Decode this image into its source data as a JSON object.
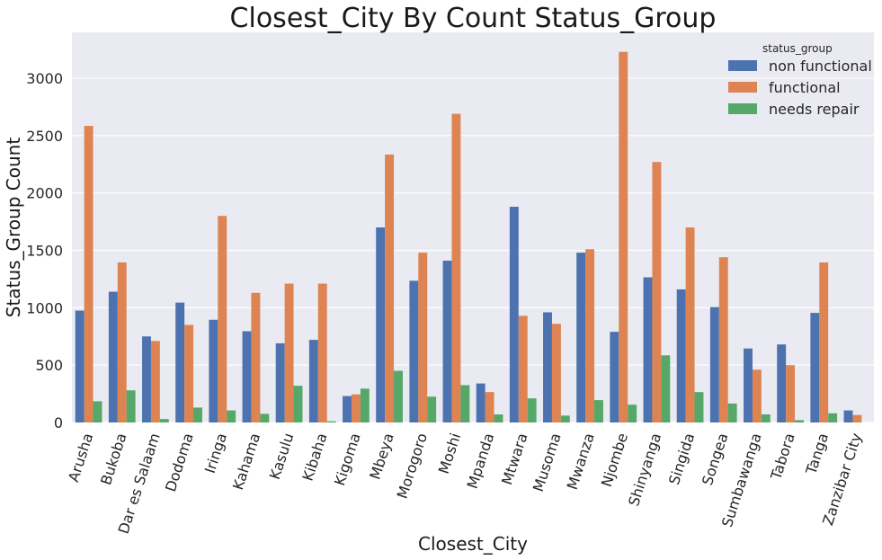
{
  "chart_data": {
    "type": "bar",
    "title": "Closest_City By Count Status_Group",
    "xlabel": "Closest_City",
    "ylabel": "Status_Group Count",
    "ylim": [
      0,
      3400
    ],
    "yticks": [
      0,
      500,
      1000,
      1500,
      2000,
      2500,
      3000
    ],
    "grid": true,
    "legend": {
      "title": "status_group",
      "placement": "top-right"
    },
    "categories": [
      "Arusha",
      "Bukoba",
      "Dar es Salaam",
      "Dodoma",
      "Iringa",
      "Kahama",
      "Kasulu",
      "Kibaha",
      "Kigoma",
      "Mbeya",
      "Morogoro",
      "Moshi",
      "Mpanda",
      "Mtwara",
      "Musoma",
      "Mwanza",
      "Njombe",
      "Shinyanga",
      "Singida",
      "Songea",
      "Sumbawanga",
      "Tabora",
      "Tanga",
      "Zanzibar City"
    ],
    "series": [
      {
        "name": "non functional",
        "color": "#4c72b0",
        "values": [
          975,
          1140,
          750,
          1045,
          895,
          795,
          690,
          720,
          230,
          1700,
          1235,
          1410,
          340,
          1880,
          960,
          1480,
          790,
          1265,
          1160,
          1005,
          645,
          680,
          955,
          105
        ]
      },
      {
        "name": "functional",
        "color": "#dd8452",
        "values": [
          2585,
          1395,
          710,
          850,
          1800,
          1130,
          1210,
          1210,
          245,
          2335,
          1480,
          2690,
          265,
          930,
          860,
          1510,
          3230,
          2270,
          1700,
          1440,
          460,
          500,
          1395,
          65
        ]
      },
      {
        "name": "needs repair",
        "color": "#55a868",
        "values": [
          185,
          280,
          30,
          130,
          105,
          75,
          320,
          10,
          295,
          450,
          225,
          325,
          70,
          210,
          60,
          195,
          155,
          585,
          265,
          165,
          70,
          20,
          80,
          0
        ]
      }
    ]
  },
  "style": {
    "plot_bg": "#eaeaf2",
    "grid_color": "#ffffff"
  }
}
